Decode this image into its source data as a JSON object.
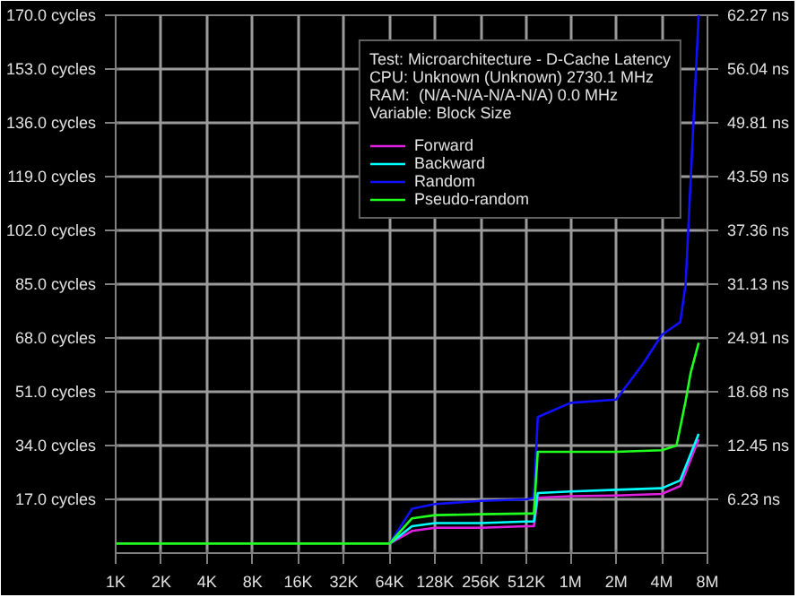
{
  "chart_data": {
    "type": "line",
    "annotations": [
      "Test: Microarchitecture - D-Cache Latency",
      "CPU: Unknown (Unknown) 2730.1 MHz",
      "RAM:  (N/A-N/A-N/A-N/A) 0.0 MHz",
      "Variable: Block Size"
    ],
    "log": "x",
    "xlim": [
      1000,
      8000000
    ],
    "xticks": [
      {
        "value": 1000,
        "label": "1K"
      },
      {
        "value": 2000,
        "label": "2K"
      },
      {
        "value": 4000,
        "label": "4K"
      },
      {
        "value": 8000,
        "label": "8K"
      },
      {
        "value": 16000,
        "label": "16K"
      },
      {
        "value": 32000,
        "label": "32K"
      },
      {
        "value": 64000,
        "label": "64K"
      },
      {
        "value": 128000,
        "label": "128K"
      },
      {
        "value": 256000,
        "label": "256K"
      },
      {
        "value": 512000,
        "label": "512K"
      },
      {
        "value": 1000000,
        "label": "1M"
      },
      {
        "value": 2000000,
        "label": "2M"
      },
      {
        "value": 4000000,
        "label": "4M"
      },
      {
        "value": 8000000,
        "label": "8M"
      }
    ],
    "ylim": [
      0,
      170
    ],
    "yticks": [
      {
        "value": 17,
        "label": "17.0 cycles"
      },
      {
        "value": 34,
        "label": "34.0 cycles"
      },
      {
        "value": 51,
        "label": "51.0 cycles"
      },
      {
        "value": 68,
        "label": "68.0 cycles"
      },
      {
        "value": 85,
        "label": "85.0 cycles"
      },
      {
        "value": 102,
        "label": "102.0 cycles"
      },
      {
        "value": 119,
        "label": "119.0 cycles"
      },
      {
        "value": 136,
        "label": "136.0 cycles"
      },
      {
        "value": 153,
        "label": "153.0 cycles"
      },
      {
        "value": 170,
        "label": "170.0 cycles"
      }
    ],
    "y2lim": [
      0,
      62.27
    ],
    "y2ticks": [
      {
        "value": 6.23,
        "label": "6.23 ns"
      },
      {
        "value": 12.45,
        "label": "12.45 ns"
      },
      {
        "value": 18.68,
        "label": "18.68 ns"
      },
      {
        "value": 24.91,
        "label": "24.91 ns"
      },
      {
        "value": 31.13,
        "label": "31.13 ns"
      },
      {
        "value": 37.36,
        "label": "37.36 ns"
      },
      {
        "value": 43.59,
        "label": "43.59 ns"
      },
      {
        "value": 49.81,
        "label": "49.81 ns"
      },
      {
        "value": 56.04,
        "label": "56.04 ns"
      },
      {
        "value": 62.27,
        "label": "62.27 ns"
      }
    ],
    "grid": true,
    "legend": "top right",
    "series": [
      {
        "name": "Forward",
        "color": "#e020e0",
        "x": [
          64000,
          90000,
          128000,
          256000,
          512000,
          573000,
          608000,
          1000000,
          2000000,
          4000000,
          5290000,
          7000000
        ],
        "values": [
          3,
          7,
          8,
          8,
          8.5,
          8.5,
          17.5,
          18,
          18.2,
          18.7,
          21.2,
          36
        ]
      },
      {
        "name": "Backward",
        "color": "#00ffff",
        "x": [
          64000,
          90000,
          128000,
          256000,
          512000,
          573000,
          608000,
          1000000,
          2000000,
          4000000,
          5290000,
          7000000
        ],
        "values": [
          3,
          8.5,
          9.5,
          9.5,
          10,
          10,
          19,
          19.5,
          20,
          20.5,
          23,
          37.7
        ]
      },
      {
        "name": "Random",
        "color": "#1010ff",
        "x": [
          64000,
          90000,
          128000,
          256000,
          512000,
          573000,
          608000,
          1000000,
          2000000,
          3025000,
          4000000,
          5290000,
          5740000,
          7000000
        ],
        "values": [
          3,
          14,
          15.5,
          16.5,
          17,
          17.5,
          43,
          47.5,
          48.5,
          60,
          69,
          73,
          85,
          170
        ]
      },
      {
        "name": "Pseudo-random",
        "color": "#20ff20",
        "x": [
          1000,
          2000,
          4000,
          8000,
          16000,
          32000,
          64000,
          90000,
          128000,
          256000,
          512000,
          573000,
          608000,
          1000000,
          2000000,
          4000000,
          5000000,
          5740000,
          6200000,
          7000000
        ],
        "values": [
          3,
          3,
          3,
          3,
          3,
          3,
          3,
          11,
          12,
          12.3,
          12.5,
          12.5,
          32,
          32,
          32,
          32.5,
          34,
          48,
          57,
          66.5
        ]
      }
    ]
  }
}
